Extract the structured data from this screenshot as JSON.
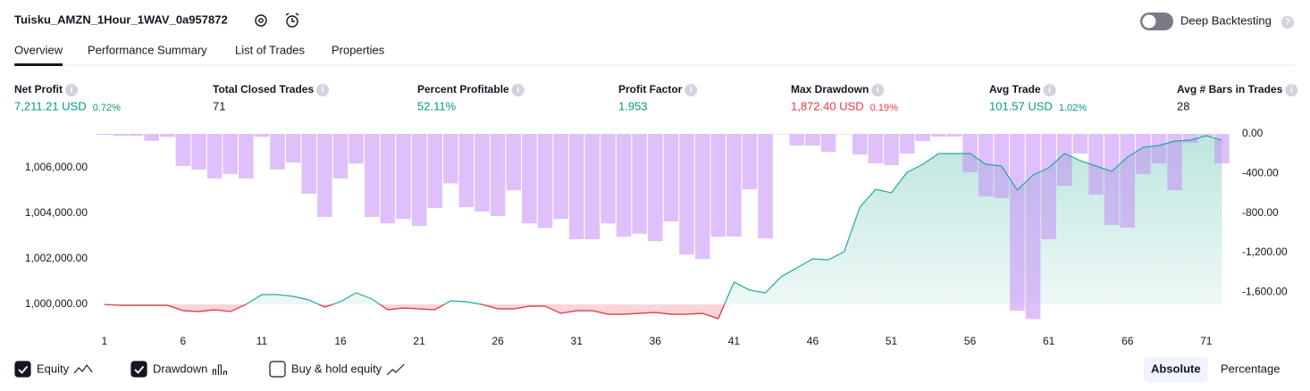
{
  "header": {
    "title": "Tuisku_AMZN_1Hour_1WAV_0a957872",
    "toggle_label": "Deep Backtesting",
    "toggle_on": false
  },
  "tabs": [
    "Overview",
    "Performance Summary",
    "List of Trades",
    "Properties"
  ],
  "active_tab": 0,
  "metrics": [
    {
      "label": "Net Profit",
      "value": "7,211.21 USD",
      "percent": "0.72%",
      "tone": "positive"
    },
    {
      "label": "Total Closed Trades",
      "value": "71",
      "tone": "neutral"
    },
    {
      "label": "Percent Profitable",
      "value": "52.11%",
      "tone": "positive"
    },
    {
      "label": "Profit Factor",
      "value": "1.953",
      "tone": "positive"
    },
    {
      "label": "Max Drawdown",
      "value": "1,872.40 USD",
      "percent": "0.19%",
      "tone": "negative"
    },
    {
      "label": "Avg Trade",
      "value": "101.57 USD",
      "percent": "1.02%",
      "tone": "positive"
    },
    {
      "label": "Avg # Bars in Trades",
      "value": "28",
      "tone": "neutral"
    }
  ],
  "chart_data": {
    "type": "line_bar",
    "x": [
      1,
      2,
      3,
      4,
      5,
      6,
      7,
      8,
      9,
      10,
      11,
      12,
      13,
      14,
      15,
      16,
      17,
      18,
      19,
      20,
      21,
      22,
      23,
      24,
      25,
      26,
      27,
      28,
      29,
      30,
      31,
      32,
      33,
      34,
      35,
      36,
      37,
      38,
      39,
      40,
      41,
      42,
      43,
      44,
      45,
      46,
      47,
      48,
      49,
      50,
      51,
      52,
      53,
      54,
      55,
      56,
      57,
      58,
      59,
      60,
      61,
      62,
      63,
      64,
      65,
      66,
      67,
      68,
      69,
      70,
      71,
      72
    ],
    "xlim": [
      0.5,
      72.6
    ],
    "xticks": [
      1,
      6,
      11,
      16,
      21,
      26,
      31,
      36,
      41,
      46,
      51,
      56,
      61,
      66,
      71
    ],
    "ylim": [
      999059,
      1007490
    ],
    "yticks": [
      {
        "value": 1000000,
        "label": "1,000,000.00"
      },
      {
        "value": 1002000,
        "label": "1,002,000.00"
      },
      {
        "value": 1004000,
        "label": "1,004,000.00"
      },
      {
        "value": 1006000,
        "label": "1,006,000.00"
      }
    ],
    "y2lim": [
      -1941,
      0
    ],
    "y2ticks": [
      {
        "value": 0,
        "label": "0.00"
      },
      {
        "value": -400,
        "label": "-400.00"
      },
      {
        "value": -800,
        "label": "-800.00"
      },
      {
        "value": -1200,
        "label": "-1,200.00"
      },
      {
        "value": -1600,
        "label": "-1,600.00"
      }
    ],
    "series": [
      {
        "name": "Equity",
        "color": "#22ab94",
        "negative_color": "#f23645",
        "values": [
          1000000,
          999960,
          999960,
          999960,
          999960,
          999725,
          999686,
          999765,
          999686,
          1000000,
          1000431,
          1000431,
          1000353,
          1000196,
          999882,
          1000118,
          1000510,
          1000235,
          999765,
          999843,
          999804,
          999765,
          1000157,
          1000118,
          1000000,
          999804,
          999804,
          999922,
          999922,
          999608,
          999725,
          999725,
          999569,
          999569,
          999608,
          999647,
          999569,
          999569,
          999608,
          999373,
          1000980,
          1000627,
          1000510,
          1001216,
          1001608,
          1002000,
          1001961,
          1002314,
          1004275,
          1005059,
          1004902,
          1005804,
          1006157,
          1006627,
          1006627,
          1006627,
          1006157,
          1006078,
          1005020,
          1005686,
          1006000,
          1006627,
          1006314,
          1006078,
          1005843,
          1006471,
          1006902,
          1006980,
          1007176,
          1007216,
          1007412,
          1007211
        ]
      },
      {
        "name": "Drawdown",
        "color": "#c48cf5",
        "axis": "y2",
        "values": [
          -10,
          -20,
          -20,
          -70,
          -30,
          -325,
          -360,
          -450,
          -405,
          -450,
          -30,
          -360,
          -290,
          -605,
          -840,
          -450,
          -300,
          -840,
          -905,
          -860,
          -930,
          -750,
          -500,
          -740,
          -785,
          -830,
          -570,
          -905,
          -950,
          -860,
          -1065,
          -1065,
          -905,
          -1040,
          -1010,
          -1085,
          -885,
          -1220,
          -1265,
          -1040,
          -1038,
          -560,
          -1057,
          0,
          -117,
          -117,
          -181,
          0,
          -208,
          -298,
          -316,
          -199,
          -72,
          -27,
          -27,
          -388,
          -632,
          -650,
          -1788,
          -1872.4,
          -1066,
          -524,
          -199,
          -614,
          -921,
          -948,
          -406,
          -298,
          -569,
          -90,
          -27,
          -298
        ]
      }
    ]
  },
  "legend": [
    {
      "label": "Equity",
      "checked": true
    },
    {
      "label": "Drawdown",
      "checked": true
    },
    {
      "label": "Buy & hold equity",
      "checked": false
    }
  ],
  "view_modes": [
    "Absolute",
    "Percentage"
  ],
  "active_view": 0
}
